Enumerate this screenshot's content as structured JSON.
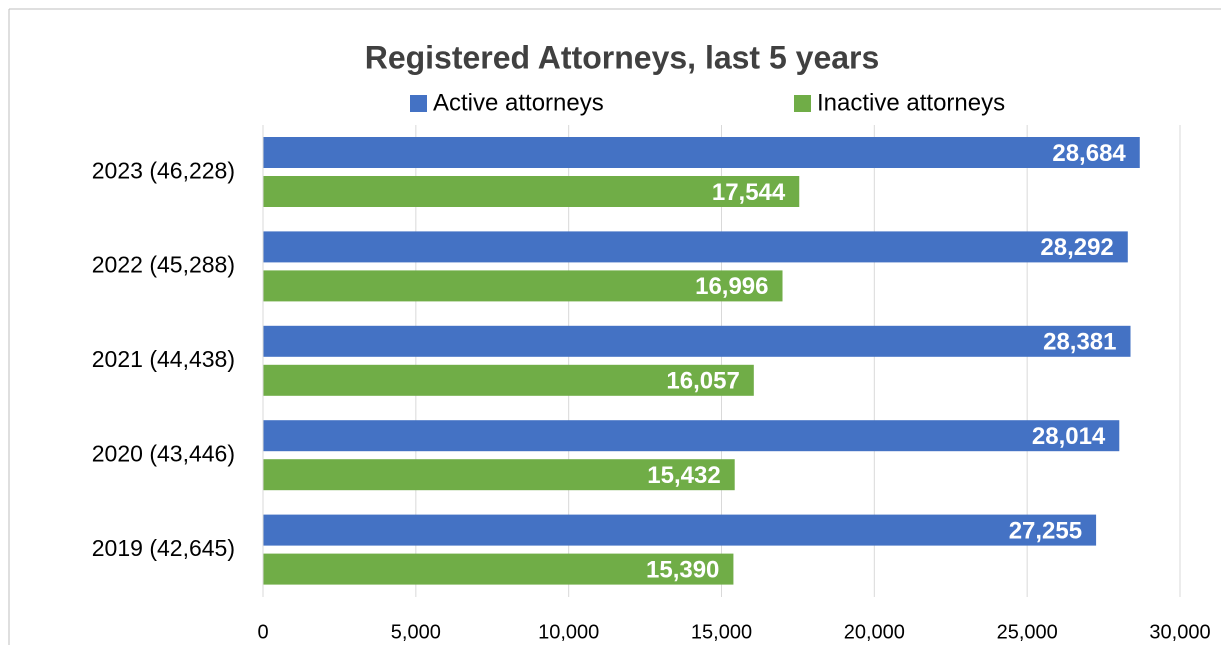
{
  "chart_data": {
    "type": "bar",
    "orientation": "horizontal",
    "title": "Registered Attorneys, last 5 years",
    "categories": [
      "2023 (46,228)",
      "2022 (45,288)",
      "2021 (44,438)",
      "2020 (43,446)",
      "2019 (42,645)"
    ],
    "series": [
      {
        "name": "Active attorneys",
        "color": "#4472c4",
        "values": [
          28684,
          28292,
          28381,
          28014,
          27255
        ],
        "value_labels": [
          "28,684",
          "28,292",
          "28,381",
          "28,014",
          "27,255"
        ]
      },
      {
        "name": "Inactive attorneys",
        "color": "#70ad47",
        "values": [
          17544,
          16996,
          16057,
          15432,
          15390
        ],
        "value_labels": [
          "17,544",
          "16,996",
          "16,057",
          "15,432",
          "15,390"
        ]
      }
    ],
    "xlim": [
      0,
      30000
    ],
    "xticks": [
      0,
      {
        "value": 5000,
        "label": "5,000"
      },
      {
        "value": 10000,
        "label": "10,000"
      },
      {
        "value": 15000,
        "label": "15,000"
      },
      {
        "value": 20000,
        "label": "20,000"
      },
      {
        "value": 25000,
        "label": "25,000"
      },
      {
        "value": 30000,
        "label": "30,000"
      }
    ],
    "grid": true,
    "legend": "top"
  }
}
